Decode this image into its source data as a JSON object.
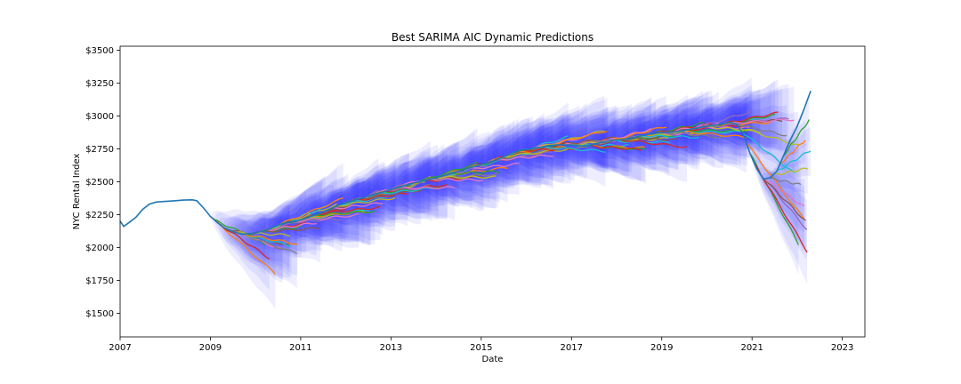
{
  "chart_data": {
    "type": "line",
    "title": "Best SARIMA AIC Dynamic Predictions",
    "xlabel": "Date",
    "ylabel": "NYC Rental Index",
    "xlim": [
      2007.0,
      2023.5
    ],
    "ylim": [
      1320,
      3530
    ],
    "x_ticks": [
      2007,
      2009,
      2011,
      2013,
      2015,
      2017,
      2019,
      2021,
      2023
    ],
    "y_ticks": [
      1500,
      1750,
      2000,
      2250,
      2500,
      2750,
      3000,
      3250,
      3500
    ],
    "y_tick_labels": [
      "$1500",
      "$1750",
      "$2000",
      "$2250",
      "$2500",
      "$2750",
      "$3000",
      "$3250",
      "$3500"
    ],
    "grid": false,
    "colors": {
      "observed": "#1f77b4",
      "confidence_band": "#0000ff",
      "forecast_palette": [
        "#ff7f0e",
        "#2ca02c",
        "#d62728",
        "#9467bd",
        "#8c564b",
        "#e377c2",
        "#7f7f7f",
        "#bcbd22",
        "#17becf"
      ]
    },
    "observed": {
      "x": [
        2007.0,
        2007.08,
        2007.2,
        2007.35,
        2007.5,
        2007.65,
        2007.8,
        2008.0,
        2008.2,
        2008.4,
        2008.6,
        2008.7,
        2008.85,
        2009.0,
        2009.15,
        2009.3,
        2009.5,
        2009.7,
        2009.9,
        2010.1,
        2010.3,
        2010.5,
        2010.7,
        2010.9,
        2011.1,
        2011.3,
        2011.5,
        2011.7,
        2011.9,
        2012.1,
        2012.3,
        2012.5,
        2012.7,
        2012.9,
        2013.1,
        2013.3,
        2013.5,
        2013.7,
        2013.9,
        2014.1,
        2014.3,
        2014.5,
        2014.7,
        2014.9,
        2015.1,
        2015.3,
        2015.5,
        2015.7,
        2015.9,
        2016.1,
        2016.3,
        2016.5,
        2016.7,
        2016.9,
        2017.1,
        2017.3,
        2017.5,
        2017.7,
        2017.9,
        2018.1,
        2018.3,
        2018.5,
        2018.7,
        2018.9,
        2019.1,
        2019.3,
        2019.5,
        2019.7,
        2019.9,
        2020.1,
        2020.3,
        2020.5,
        2020.65,
        2020.8,
        2020.95,
        2021.1,
        2021.25,
        2021.4,
        2021.55,
        2021.7,
        2021.85,
        2022.0,
        2022.15,
        2022.3
      ],
      "y": [
        2200,
        2160,
        2190,
        2230,
        2290,
        2330,
        2345,
        2350,
        2355,
        2360,
        2362,
        2355,
        2300,
        2235,
        2190,
        2150,
        2120,
        2100,
        2105,
        2120,
        2140,
        2170,
        2190,
        2200,
        2220,
        2245,
        2270,
        2300,
        2330,
        2350,
        2370,
        2390,
        2410,
        2430,
        2450,
        2470,
        2490,
        2505,
        2520,
        2540,
        2560,
        2580,
        2600,
        2620,
        2640,
        2660,
        2690,
        2720,
        2740,
        2750,
        2760,
        2775,
        2780,
        2780,
        2775,
        2770,
        2785,
        2800,
        2815,
        2820,
        2830,
        2845,
        2860,
        2870,
        2875,
        2880,
        2890,
        2905,
        2915,
        2925,
        2935,
        2950,
        2940,
        2870,
        2720,
        2600,
        2520,
        2530,
        2580,
        2700,
        2820,
        2920,
        3050,
        3190
      ]
    },
    "forecast_origin_range": [
      2009.0,
      2021.7
    ],
    "forecast_horizon_years": 1.5,
    "num_forecasts": 155
  }
}
